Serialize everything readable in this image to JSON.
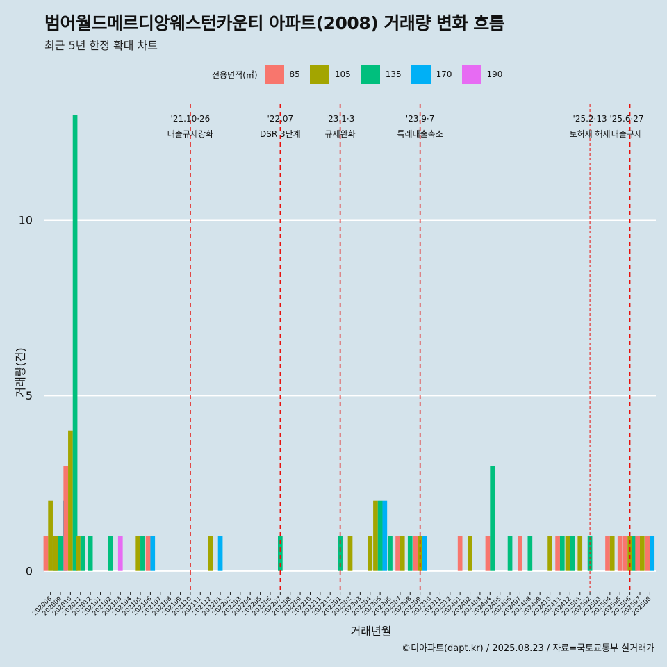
{
  "title": "범어월드메르디앙웨스턴카운티 아파트(2008) 거래량 변화 흐름",
  "subtitle": "최근 5년 한정 확대 차트",
  "caption": "©디아파트(dapt.kr) / 2025.08.23 / 자료=국토교통부 실거래가",
  "legend": {
    "title": "전용면적(㎡)",
    "items": [
      {
        "label": "85",
        "color": "#f8766d"
      },
      {
        "label": "105",
        "color": "#a3a500"
      },
      {
        "label": "135",
        "color": "#00bf7d"
      },
      {
        "label": "170",
        "color": "#00b0f6"
      },
      {
        "label": "190",
        "color": "#e76bf3"
      }
    ]
  },
  "chart_data": {
    "type": "bar",
    "title": "범어월드메르디앙웨스턴카운티 아파트(2008) 거래량 변화 흐름",
    "subtitle": "최근 5년 한정 확대 차트",
    "xlabel": "거래년월",
    "ylabel": "거래량(건)",
    "ylim": [
      -0.6,
      13.5
    ],
    "yticks": [
      0,
      5,
      10
    ],
    "grid": true,
    "legend_position": "top",
    "categories": [
      "202008",
      "202009",
      "202010",
      "202011",
      "202012",
      "202101",
      "202102",
      "202103",
      "202104",
      "202105",
      "202106",
      "202107",
      "202108",
      "202109",
      "202110",
      "202111",
      "202112",
      "202201",
      "202202",
      "202203",
      "202204",
      "202205",
      "202206",
      "202207",
      "202208",
      "202209",
      "202210",
      "202211",
      "202212",
      "202301",
      "202302",
      "202303",
      "202304",
      "202305",
      "202306",
      "202307",
      "202308",
      "202309",
      "202310",
      "202311",
      "202312",
      "202401",
      "202402",
      "202403",
      "202404",
      "202405",
      "202406",
      "202407",
      "202408",
      "202409",
      "202410",
      "202411",
      "202412",
      "202501",
      "202502",
      "202503",
      "202504",
      "202505",
      "202506",
      "202507",
      "202508"
    ],
    "series": [
      {
        "name": "85",
        "color": "#f8766d",
        "values": [
          1,
          0,
          3,
          0,
          0,
          0,
          0,
          0,
          0,
          0,
          1,
          0,
          0,
          0,
          0,
          0,
          0,
          0,
          0,
          0,
          0,
          0,
          0,
          0,
          0,
          0,
          0,
          0,
          0,
          0,
          0,
          0,
          0,
          0,
          0,
          1,
          0,
          1,
          0,
          0,
          0,
          1,
          0,
          0,
          1,
          0,
          0,
          1,
          0,
          0,
          0,
          1,
          0,
          0,
          0,
          0,
          1,
          1,
          1,
          1,
          1
        ]
      },
      {
        "name": "105",
        "color": "#a3a500",
        "values": [
          2,
          1,
          4,
          1,
          0,
          0,
          0,
          0,
          0,
          1,
          0,
          0,
          0,
          0,
          0,
          0,
          1,
          0,
          0,
          0,
          0,
          0,
          0,
          0,
          0,
          0,
          0,
          0,
          0,
          0,
          1,
          0,
          1,
          2,
          0,
          1,
          0,
          1,
          0,
          0,
          0,
          0,
          1,
          0,
          0,
          0,
          0,
          0,
          0,
          0,
          1,
          0,
          1,
          1,
          0,
          0,
          1,
          0,
          1,
          1,
          0
        ]
      },
      {
        "name": "135",
        "color": "#00bf7d",
        "values": [
          1,
          1,
          13,
          1,
          1,
          0,
          1,
          0,
          0,
          1,
          0,
          0,
          0,
          0,
          0,
          0,
          0,
          0,
          0,
          0,
          0,
          0,
          0,
          1,
          0,
          0,
          0,
          0,
          0,
          1,
          0,
          0,
          0,
          2,
          1,
          0,
          1,
          0,
          0,
          0,
          0,
          0,
          0,
          0,
          3,
          0,
          1,
          0,
          1,
          0,
          0,
          1,
          1,
          0,
          1,
          0,
          0,
          0,
          1,
          0,
          0
        ]
      },
      {
        "name": "170",
        "color": "#00b0f6",
        "values": [
          0,
          2,
          0,
          0,
          0,
          0,
          0,
          0,
          0,
          0,
          1,
          0,
          0,
          0,
          0,
          0,
          0,
          1,
          0,
          0,
          0,
          0,
          0,
          0,
          0,
          0,
          0,
          0,
          0,
          0,
          0,
          0,
          0,
          2,
          0,
          0,
          0,
          1,
          0,
          0,
          0,
          0,
          0,
          0,
          0,
          0,
          0,
          0,
          0,
          0,
          0,
          0,
          0,
          0,
          0,
          0,
          0,
          0,
          0,
          0,
          1
        ]
      },
      {
        "name": "190",
        "color": "#e76bf3",
        "values": [
          0,
          0,
          0,
          0,
          0,
          0,
          0,
          1,
          0,
          0,
          0,
          0,
          0,
          0,
          0,
          0,
          0,
          0,
          0,
          0,
          0,
          0,
          0,
          0,
          0,
          0,
          0,
          0,
          0,
          0,
          0,
          0,
          0,
          0,
          0,
          0,
          0,
          0,
          0,
          0,
          0,
          0,
          0,
          0,
          0,
          0,
          0,
          0,
          0,
          0,
          0,
          0,
          0,
          0,
          0,
          0,
          0,
          0,
          0,
          0,
          0
        ]
      }
    ],
    "events": [
      {
        "x": "202110",
        "date": "'21.10·26",
        "label": "대출규제강화",
        "style": "thick"
      },
      {
        "x": "202207",
        "date": "'22.07",
        "label": "DSR 3단계",
        "style": "thick"
      },
      {
        "x": "202301",
        "date": "'23.1·3",
        "label": "규제완화",
        "style": "thick"
      },
      {
        "x": "202309",
        "date": "'23.9·7",
        "label": "특례대출축소",
        "style": "thick"
      },
      {
        "x": "202502",
        "date": "'25.2·13",
        "label": "토허제 해제",
        "style": "thin"
      },
      {
        "x": "202506",
        "date": "'25.6·27",
        "label": "대출규제",
        "style": "thick"
      }
    ]
  }
}
